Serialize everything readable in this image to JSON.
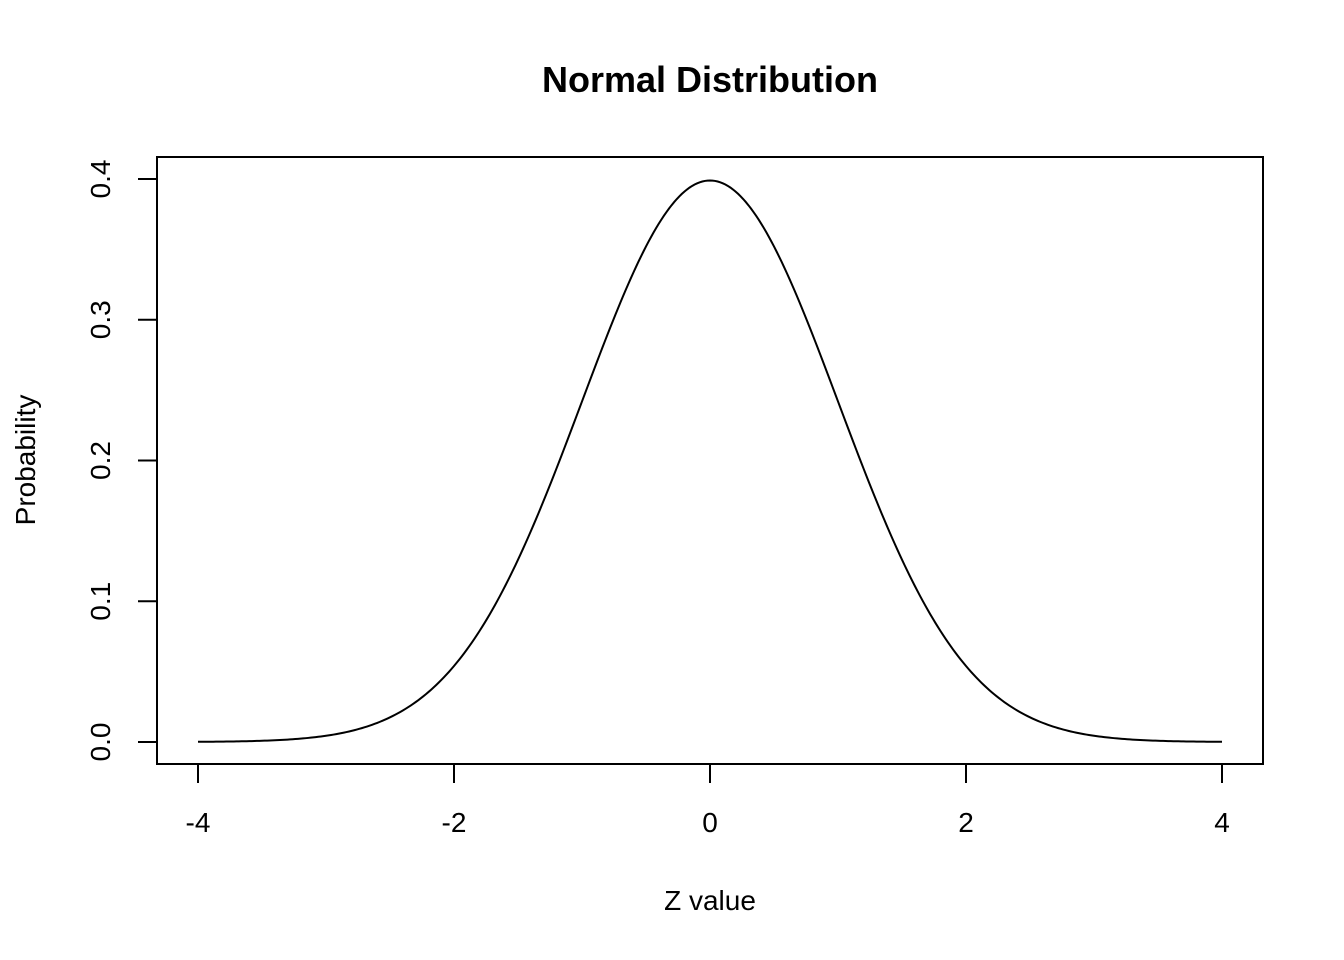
{
  "chart_data": {
    "type": "line",
    "title": "Normal Distribution",
    "xlabel": "Z value",
    "ylabel": "Probability",
    "xlim": [
      -4,
      4
    ],
    "ylim": [
      0,
      0.4
    ],
    "x_ticks": [
      -4,
      -2,
      0,
      2,
      4
    ],
    "x_tick_labels": [
      "-4",
      "-2",
      "0",
      "2",
      "4"
    ],
    "y_ticks": [
      0,
      0.1,
      0.2,
      0.3,
      0.4
    ],
    "y_tick_labels": [
      "0.0",
      "0.1",
      "0.2",
      "0.3",
      "0.4"
    ],
    "grid": false,
    "series": [
      {
        "color": "#000000",
        "x": [
          -4.0,
          -3.8,
          -3.6,
          -3.4,
          -3.2,
          -3.0,
          -2.8,
          -2.6,
          -2.4,
          -2.2,
          -2.0,
          -1.8,
          -1.6,
          -1.4,
          -1.2,
          -1.0,
          -0.8,
          -0.6,
          -0.4,
          -0.2,
          0.0,
          0.2,
          0.4,
          0.6,
          0.8,
          1.0,
          1.2,
          1.4,
          1.6,
          1.8,
          2.0,
          2.2,
          2.4,
          2.6,
          2.8,
          3.0,
          3.2,
          3.4,
          3.6,
          3.8,
          4.0
        ],
        "y": [
          0.0001,
          0.0003,
          0.0006,
          0.0012,
          0.0024,
          0.0044,
          0.0079,
          0.0136,
          0.0224,
          0.0355,
          0.054,
          0.079,
          0.1109,
          0.1497,
          0.1942,
          0.242,
          0.2897,
          0.3332,
          0.3683,
          0.391,
          0.3989,
          0.391,
          0.3683,
          0.3332,
          0.2897,
          0.242,
          0.1942,
          0.1497,
          0.1109,
          0.079,
          0.054,
          0.0355,
          0.0224,
          0.0136,
          0.0079,
          0.0044,
          0.0024,
          0.0012,
          0.0006,
          0.0003,
          0.0001
        ]
      }
    ]
  }
}
